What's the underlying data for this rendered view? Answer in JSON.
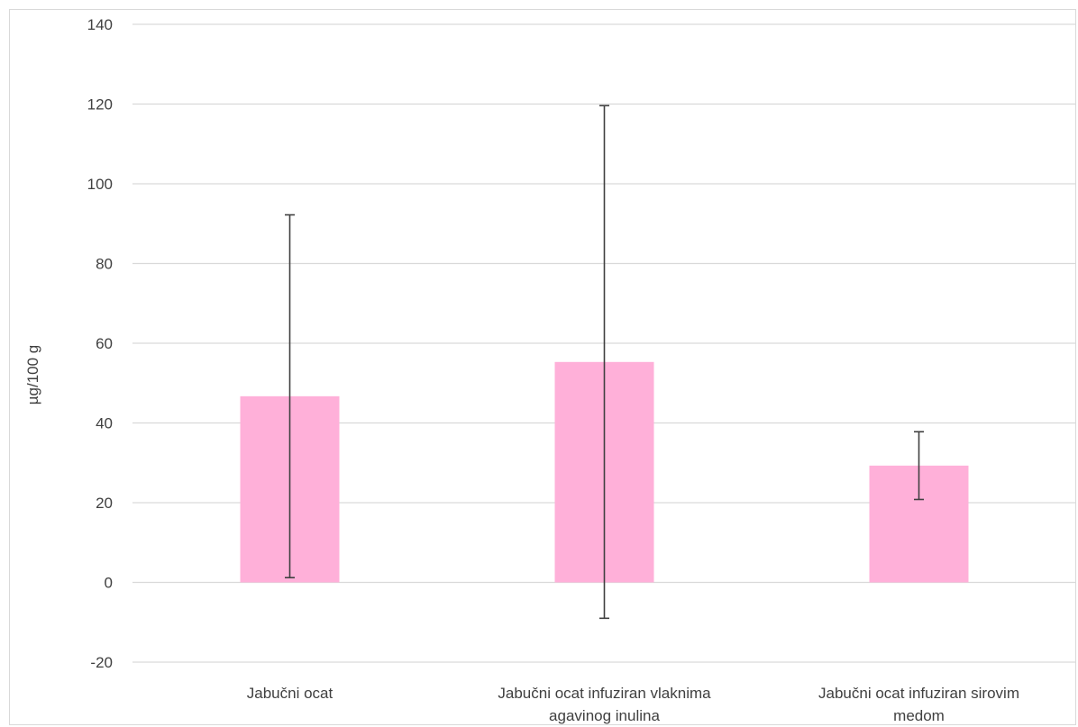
{
  "chart_data": {
    "type": "bar",
    "categories": [
      [
        "Jabučni ocat"
      ],
      [
        "Jabučni ocat infuziran vlaknima",
        "agavinog inulina"
      ],
      [
        "Jabučni ocat infuziran sirovim",
        "medom"
      ]
    ],
    "values": [
      46.7,
      55.3,
      29.3
    ],
    "error_bars": {
      "upper": [
        92.2,
        119.6,
        37.8
      ],
      "lower": [
        1.2,
        -9.0,
        20.8
      ]
    },
    "ylabel": "µg/100 g",
    "xlabel": "",
    "title": "",
    "ylim": [
      -20,
      140
    ],
    "yticks": [
      -20,
      0,
      20,
      40,
      60,
      80,
      100,
      120,
      140
    ],
    "grid": true,
    "legend": "none",
    "bar_color": "#ffb0d9",
    "error_bar_color": "#404040",
    "gridline_color": "#d9d9d9"
  }
}
